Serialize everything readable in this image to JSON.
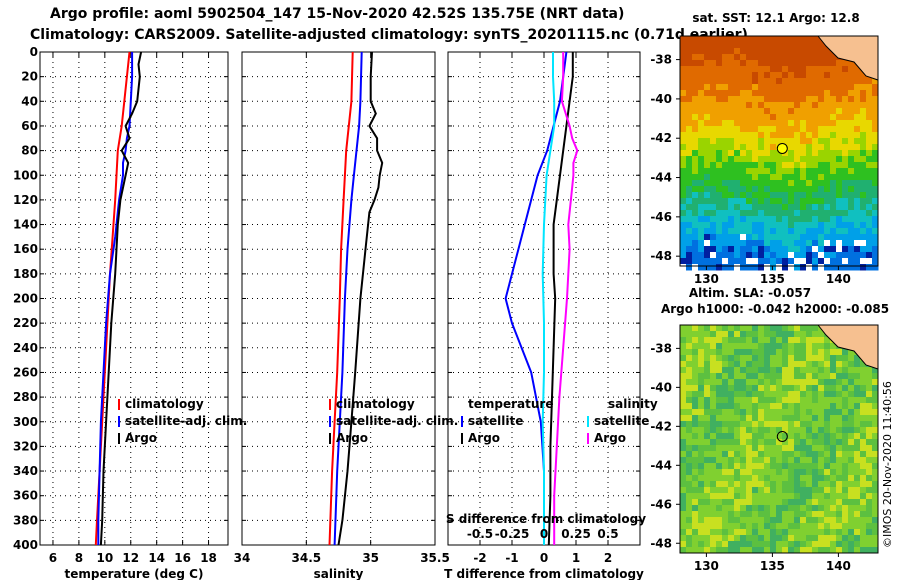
{
  "title": {
    "line1": "Argo profile: aoml 5902504_147 15-Nov-2020 42.52S 135.75E (NRT data)",
    "line2": "Climatology: CARS2009. Satellite-adjusted climatology: synTS_20201115.nc (0.71d earlier)"
  },
  "colors": {
    "climatology": "#ff0000",
    "satellite": "#0000ff",
    "argo": "#000000",
    "cyan": "#00e5ff",
    "magenta": "#ff00ff"
  },
  "depth_ticks": [
    "0",
    "20",
    "40",
    "60",
    "80",
    "100",
    "120",
    "140",
    "160",
    "180",
    "200",
    "220",
    "240",
    "260",
    "280",
    "300",
    "320",
    "340",
    "360",
    "380",
    "400"
  ],
  "chart_data": [
    {
      "type": "line",
      "name": "temperature",
      "xlabel": "temperature (deg C)",
      "xlim": [
        5,
        19.5
      ],
      "ylim": [
        0,
        400
      ],
      "xticks": [
        "6",
        "8",
        "10",
        "12",
        "14",
        "16",
        "18"
      ],
      "legend": [
        "climatology",
        "satellite-adj. clim.",
        "Argo"
      ],
      "series": [
        {
          "name": "climatology",
          "color": "#ff0000",
          "depth": [
            0,
            20,
            40,
            60,
            80,
            100,
            120,
            150,
            180,
            220,
            260,
            300,
            340,
            380,
            400
          ],
          "values": [
            11.9,
            11.7,
            11.5,
            11.3,
            11.0,
            10.9,
            10.8,
            10.6,
            10.4,
            10.2,
            10.0,
            9.8,
            9.6,
            9.4,
            9.3
          ]
        },
        {
          "name": "satellite-adj. clim.",
          "color": "#0000ff",
          "depth": [
            0,
            20,
            40,
            60,
            70,
            80,
            90,
            100,
            120,
            150,
            180,
            220,
            260,
            300,
            340,
            380,
            400
          ],
          "values": [
            12.1,
            12.1,
            12.0,
            11.9,
            11.7,
            11.6,
            11.4,
            11.4,
            11.1,
            10.8,
            10.4,
            10.1,
            9.9,
            9.7,
            9.6,
            9.5,
            9.5
          ]
        },
        {
          "name": "Argo",
          "color": "#000000",
          "depth": [
            0,
            10,
            20,
            40,
            50,
            60,
            70,
            80,
            90,
            100,
            120,
            140,
            160,
            180,
            220,
            260,
            300,
            340,
            380,
            400
          ],
          "values": [
            12.8,
            12.6,
            12.7,
            12.5,
            12.1,
            11.6,
            11.9,
            11.3,
            11.8,
            11.6,
            11.2,
            11.0,
            10.9,
            10.8,
            10.5,
            10.3,
            10.1,
            9.9,
            9.8,
            9.7
          ]
        }
      ]
    },
    {
      "type": "line",
      "name": "salinity",
      "xlabel": "salinity",
      "xlim": [
        34,
        35.5
      ],
      "ylim": [
        0,
        400
      ],
      "xticks": [
        "34",
        "34.5",
        "35",
        "35.5"
      ],
      "legend": [
        "climatology",
        "satellite-adj. clim.",
        "Argo"
      ],
      "series": [
        {
          "name": "climatology",
          "color": "#ff0000",
          "depth": [
            0,
            40,
            60,
            80,
            100,
            120,
            160,
            200,
            260,
            300,
            340,
            400
          ],
          "values": [
            34.86,
            34.85,
            34.83,
            34.81,
            34.8,
            34.79,
            34.77,
            34.76,
            34.74,
            34.72,
            34.7,
            34.68
          ]
        },
        {
          "name": "satellite-adj. clim.",
          "color": "#0000ff",
          "depth": [
            0,
            40,
            60,
            80,
            100,
            120,
            160,
            200,
            260,
            300,
            340,
            400
          ],
          "values": [
            34.93,
            34.92,
            34.91,
            34.89,
            34.87,
            34.85,
            34.82,
            34.8,
            34.78,
            34.76,
            34.74,
            34.72
          ]
        },
        {
          "name": "Argo",
          "color": "#000000",
          "depth": [
            0,
            20,
            40,
            50,
            60,
            70,
            80,
            90,
            100,
            110,
            120,
            130,
            160,
            200,
            260,
            300,
            340,
            380,
            400
          ],
          "values": [
            35.01,
            35.0,
            35.0,
            35.04,
            34.99,
            35.05,
            35.05,
            35.09,
            35.07,
            35.06,
            35.03,
            34.99,
            34.96,
            34.92,
            34.88,
            34.85,
            34.82,
            34.78,
            34.75
          ]
        }
      ]
    },
    {
      "type": "line",
      "name": "difference",
      "xlabel": "T difference from climatology",
      "xlabel_top": "S difference from climatology",
      "xlim": [
        -3,
        3
      ],
      "xlim_top": [
        -0.75,
        0.75
      ],
      "ylim": [
        0,
        400
      ],
      "xticks": [
        "-2",
        "-1",
        "0",
        "1",
        "2"
      ],
      "xticks_top": [
        "-0.5",
        "-0.25",
        "0",
        "0.25",
        "0.5"
      ],
      "legend_left_title": "temperature",
      "legend_right_title": "salinity",
      "legend_left": [
        "satellite",
        "Argo"
      ],
      "legend_right": [
        "satellite",
        "Argo"
      ],
      "series": [
        {
          "name": "T satellite",
          "color": "#0000ff",
          "depth": [
            0,
            20,
            40,
            60,
            80,
            100,
            120,
            140,
            160,
            180,
            200,
            220,
            260,
            300,
            340,
            380,
            400
          ],
          "values": [
            0.7,
            0.6,
            0.5,
            0.3,
            0.1,
            -0.2,
            -0.4,
            -0.6,
            -0.8,
            -1.0,
            -1.2,
            -1.0,
            -0.4,
            -0.1,
            0.0,
            0.0,
            0.0
          ]
        },
        {
          "name": "T Argo",
          "color": "#000000",
          "depth": [
            0,
            20,
            40,
            60,
            80,
            100,
            120,
            140,
            160,
            180,
            200,
            240,
            280,
            320,
            360,
            400
          ],
          "values": [
            0.9,
            0.9,
            0.8,
            0.7,
            0.6,
            0.5,
            0.4,
            0.3,
            0.3,
            0.3,
            0.35,
            0.3,
            0.25,
            0.2,
            0.2,
            0.15
          ]
        },
        {
          "name": "S satellite",
          "color": "#00e5ff",
          "depth": [
            0,
            20,
            40,
            60,
            80,
            100,
            140,
            180,
            220,
            260,
            300,
            340,
            380,
            400
          ],
          "values": [
            0.07,
            0.07,
            0.08,
            0.08,
            0.05,
            0.02,
            0.0,
            -0.01,
            0.0,
            0.0,
            -0.01,
            0.0,
            0.0,
            0.0
          ]
        },
        {
          "name": "S Argo",
          "color": "#ff00ff",
          "depth": [
            0,
            20,
            40,
            60,
            70,
            80,
            90,
            100,
            120,
            140,
            160,
            180,
            200,
            240,
            280,
            320,
            360,
            400
          ],
          "values": [
            0.15,
            0.15,
            0.14,
            0.2,
            0.22,
            0.26,
            0.23,
            0.23,
            0.21,
            0.19,
            0.2,
            0.19,
            0.18,
            0.15,
            0.12,
            0.1,
            0.08,
            0.08
          ]
        }
      ]
    },
    {
      "type": "heatmap",
      "name": "sst-map",
      "title": "sat. SST: 12.1 Argo: 12.8",
      "xticks": [
        "130",
        "135",
        "140"
      ],
      "yticks": [
        "-38",
        "-40",
        "-42",
        "-44",
        "-46",
        "-48"
      ],
      "xlim": [
        128,
        143
      ],
      "ylim": [
        -48.5,
        -36.8
      ],
      "argo_lon": 135.75,
      "argo_lat": -42.52
    },
    {
      "type": "heatmap",
      "name": "sla-map",
      "title_a": "Altim. SLA: -0.057",
      "title_b": "Argo h1000: -0.042 h2000: -0.085",
      "xticks": [
        "130",
        "135",
        "140"
      ],
      "yticks": [
        "-38",
        "-40",
        "-42",
        "-44",
        "-46",
        "-48"
      ],
      "xlim": [
        128,
        143
      ],
      "ylim": [
        -48.5,
        -36.8
      ],
      "argo_lon": 135.75,
      "argo_lat": -42.52
    }
  ],
  "credit": "©IMOS 20-Nov-2020 11:40:56"
}
